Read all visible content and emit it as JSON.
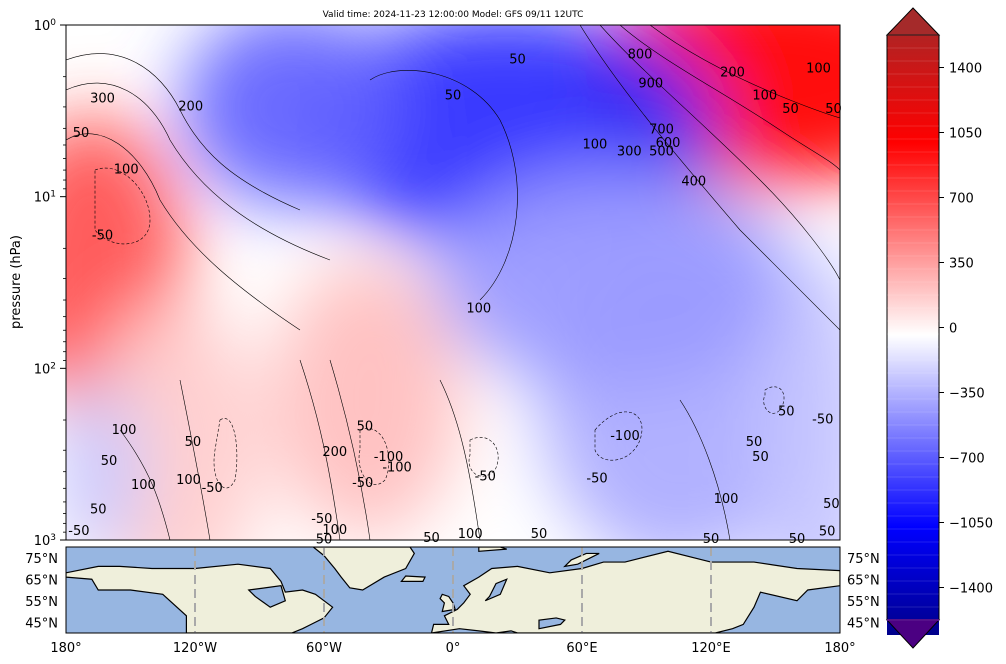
{
  "chart_data": [
    {
      "type": "heatmap",
      "title": "Valid time: 2024-11-23 12:00:00 Model: GFS 09/11 12UTC",
      "xlabel": "",
      "ylabel": "pressure (hPa)",
      "yscale": "log",
      "yinverted": true,
      "ylim": [
        1000,
        1
      ],
      "xlim": [
        -180,
        180
      ],
      "y_ticks": [
        "10^0",
        "10^1",
        "10^2",
        "10^3"
      ],
      "colormap": "seismic",
      "colorbar": {
        "ticks": [
          1400,
          1050,
          700,
          350,
          0,
          -350,
          -700,
          -1050,
          -1400
        ],
        "extend": "both",
        "colors": {
          "high_end": "#a52a2a",
          "high": "#ff0000",
          "mid": "#ffffff",
          "low": "#0000ff",
          "low_end": "#4b0082"
        }
      },
      "anomaly_centers": [
        {
          "lon": -170,
          "p": 20,
          "value": 950
        },
        {
          "lon": 150,
          "p": 2,
          "value": 1450
        },
        {
          "lon": 30,
          "p": 4,
          "value": -1150
        },
        {
          "lon": -75,
          "p": 3,
          "value": -850
        },
        {
          "lon": -40,
          "p": 150,
          "value": 350
        },
        {
          "lon": 105,
          "p": 150,
          "value": -450
        }
      ],
      "contour_labels": [
        {
          "text": "300",
          "lon": -163,
          "p": 2.7
        },
        {
          "text": "200",
          "lon": -122,
          "p": 3.0
        },
        {
          "text": "50",
          "lon": -173,
          "p": 4.3
        },
        {
          "text": "100",
          "lon": -152,
          "p": 7.0
        },
        {
          "text": "-50",
          "lon": -163,
          "p": 17
        },
        {
          "text": "50",
          "lon": 30,
          "p": 1.6
        },
        {
          "text": "50",
          "lon": 0,
          "p": 2.6
        },
        {
          "text": "800",
          "lon": 87,
          "p": 1.5
        },
        {
          "text": "900",
          "lon": 92,
          "p": 2.2
        },
        {
          "text": "200",
          "lon": 130,
          "p": 1.9
        },
        {
          "text": "100",
          "lon": 170,
          "p": 1.8
        },
        {
          "text": "100",
          "lon": 145,
          "p": 2.6
        },
        {
          "text": "50",
          "lon": 157,
          "p": 3.1
        },
        {
          "text": "50",
          "lon": 177,
          "p": 3.1
        },
        {
          "text": "700",
          "lon": 97,
          "p": 4.1
        },
        {
          "text": "600",
          "lon": 100,
          "p": 4.9
        },
        {
          "text": "500",
          "lon": 97,
          "p": 5.5
        },
        {
          "text": "300",
          "lon": 82,
          "p": 5.5
        },
        {
          "text": "100",
          "lon": 66,
          "p": 5.0
        },
        {
          "text": "400",
          "lon": 112,
          "p": 8.2
        },
        {
          "text": "100",
          "lon": 12,
          "p": 45
        },
        {
          "text": "100",
          "lon": -153,
          "p": 230
        },
        {
          "text": "50",
          "lon": -121,
          "p": 270
        },
        {
          "text": "50",
          "lon": -160,
          "p": 350
        },
        {
          "text": "100",
          "lon": -144,
          "p": 480
        },
        {
          "text": "100",
          "lon": -123,
          "p": 450
        },
        {
          "text": "50",
          "lon": -165,
          "p": 670
        },
        {
          "text": "-50",
          "lon": -112,
          "p": 500
        },
        {
          "text": "-50",
          "lon": -174,
          "p": 890
        },
        {
          "text": "-50",
          "lon": -61,
          "p": 760
        },
        {
          "text": "200",
          "lon": -55,
          "p": 310
        },
        {
          "text": "-50",
          "lon": -42,
          "p": 470
        },
        {
          "text": "-100",
          "lon": -30,
          "p": 330
        },
        {
          "text": "-100",
          "lon": -26,
          "p": 380
        },
        {
          "text": "50",
          "lon": -41,
          "p": 220
        },
        {
          "text": "100",
          "lon": -55,
          "p": 880
        },
        {
          "text": "50",
          "lon": -60,
          "p": 1000
        },
        {
          "text": "-50",
          "lon": 15,
          "p": 430
        },
        {
          "text": "-50",
          "lon": 67,
          "p": 440
        },
        {
          "text": "-100",
          "lon": 80,
          "p": 250
        },
        {
          "text": "100",
          "lon": 8,
          "p": 930
        },
        {
          "text": "50",
          "lon": 40,
          "p": 930
        },
        {
          "text": "50",
          "lon": -10,
          "p": 980
        },
        {
          "text": "100",
          "lon": 127,
          "p": 580
        },
        {
          "text": "50",
          "lon": 140,
          "p": 270
        },
        {
          "text": "50",
          "lon": 143,
          "p": 330
        },
        {
          "text": "50",
          "lon": 155,
          "p": 180
        },
        {
          "text": "-50",
          "lon": 172,
          "p": 200
        },
        {
          "text": "50",
          "lon": 176,
          "p": 620
        },
        {
          "text": "50",
          "lon": 174,
          "p": 900
        },
        {
          "text": "50",
          "lon": 160,
          "p": 990
        },
        {
          "text": "50",
          "lon": 120,
          "p": 990
        }
      ]
    },
    {
      "type": "map",
      "xlim": [
        -180,
        180
      ],
      "x_ticks": [
        "180°",
        "120°W",
        "60°W",
        "0°",
        "60°E",
        "120°E",
        "180°"
      ],
      "y_ticks": [
        "75°N",
        "65°N",
        "55°N",
        "45°N"
      ],
      "ylim": [
        40,
        80
      ],
      "colors": {
        "ocean": "#97b6e1",
        "land": "#efefdb",
        "gridline": "#a9a9a9"
      }
    }
  ]
}
